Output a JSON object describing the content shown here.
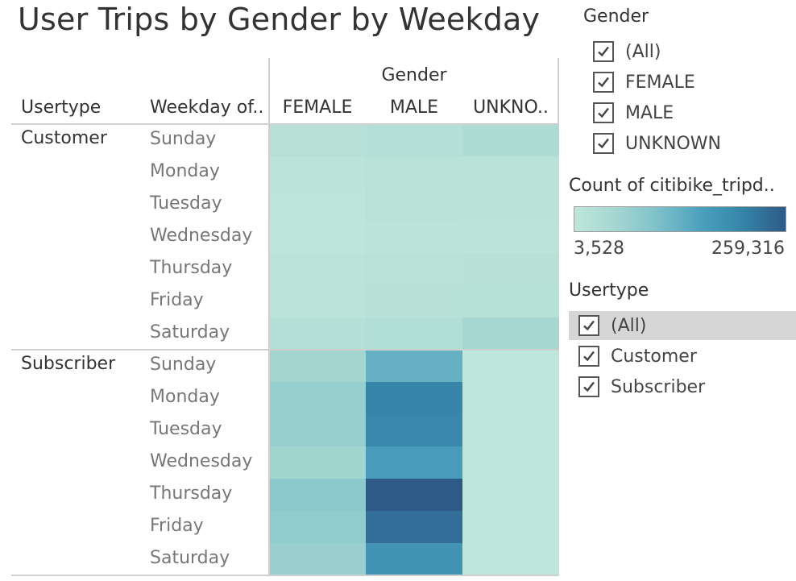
{
  "title": "User Trips by Gender by Weekday",
  "chart_data": {
    "type": "heatmap",
    "title": "User Trips by Gender by Weekday",
    "column_group_label": "Gender",
    "row_headers": [
      "Usertype",
      "Weekday of.."
    ],
    "columns": [
      "FEMALE",
      "MALE",
      "UNKNO.."
    ],
    "groups": [
      {
        "usertype": "Customer",
        "weekdays": [
          "Sunday",
          "Monday",
          "Tuesday",
          "Wednesday",
          "Thursday",
          "Friday",
          "Saturday"
        ],
        "values": [
          [
            18000,
            22000,
            34000
          ],
          [
            12000,
            16000,
            15000
          ],
          [
            9000,
            16000,
            14000
          ],
          [
            8000,
            12000,
            12000
          ],
          [
            11000,
            17000,
            18000
          ],
          [
            10000,
            18000,
            20000
          ],
          [
            22000,
            30000,
            50000
          ]
        ]
      },
      {
        "usertype": "Subscriber",
        "weekdays": [
          "Sunday",
          "Monday",
          "Tuesday",
          "Wednesday",
          "Thursday",
          "Friday",
          "Saturday"
        ],
        "values": [
          [
            55000,
            130000,
            4000
          ],
          [
            72000,
            205000,
            4000
          ],
          [
            70000,
            200000,
            4000
          ],
          [
            58000,
            165000,
            3528
          ],
          [
            85000,
            259316,
            4000
          ],
          [
            78000,
            235000,
            4000
          ],
          [
            68000,
            180000,
            4000
          ]
        ]
      }
    ],
    "color_legend": {
      "title": "Count of citibike_tripd..",
      "min": 3528,
      "max": 259316,
      "min_label": "3,528",
      "max_label": "259,316",
      "colors": [
        "#bfe6da",
        "#a3d6d1",
        "#7cc0c9",
        "#4ba0bd",
        "#3684a8",
        "#2e5a87"
      ]
    }
  },
  "gender_filter": {
    "title": "Gender",
    "items": [
      "(All)",
      "FEMALE",
      "MALE",
      "UNKNOWN"
    ]
  },
  "usertype_filter": {
    "title": "Usertype",
    "items": [
      "(All)",
      "Customer",
      "Subscriber"
    ]
  }
}
